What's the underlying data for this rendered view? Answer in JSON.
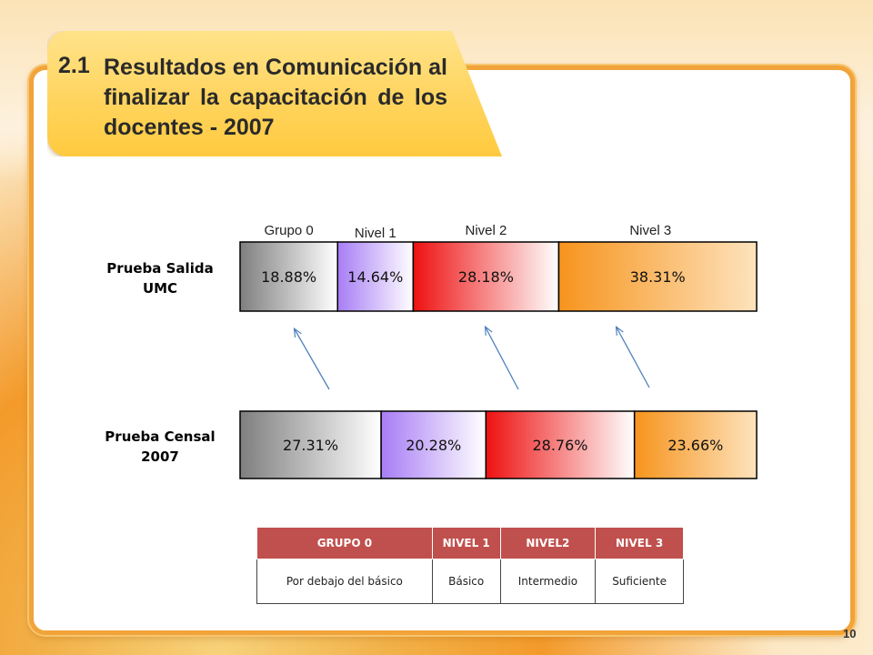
{
  "slide": {
    "title_number": "2.1",
    "title_text": "Resultados en Comunicación al finalizar la capacitación de los docentes - 2007",
    "page_number": "10"
  },
  "chart_data": {
    "type": "bar",
    "orientation": "horizontal-stacked",
    "categories": [
      "Prueba Salida UMC",
      "Prueba Censal 2007"
    ],
    "category_lines": [
      [
        "Prueba Salida",
        "UMC"
      ],
      [
        "Prueba Censal",
        "2007"
      ]
    ],
    "series": [
      {
        "name": "Grupo 0",
        "values": [
          18.88,
          27.31
        ],
        "labels": [
          "18.88%",
          "27.31%"
        ],
        "color": "#7f7f7f"
      },
      {
        "name": "Nivel 1",
        "values": [
          14.64,
          20.28
        ],
        "labels": [
          "14.64%",
          "20.28%"
        ],
        "color": "#a77df5"
      },
      {
        "name": "Nivel 2",
        "values": [
          28.18,
          28.76
        ],
        "labels": [
          "28.18%",
          "28.76%"
        ],
        "color": "#ee1111"
      },
      {
        "name": "Nivel 3",
        "values": [
          38.31,
          23.66
        ],
        "labels": [
          "38.31%",
          "23.66%"
        ],
        "color": "#f7941d"
      }
    ],
    "xlim": [
      0,
      100
    ]
  },
  "level_table": {
    "headers": [
      "GRUPO 0",
      "NIVEL 1",
      "NIVEL2",
      "NIVEL 3"
    ],
    "descriptions": [
      "Por debajo del básico",
      "Básico",
      "Intermedio",
      "Suficiente"
    ]
  }
}
